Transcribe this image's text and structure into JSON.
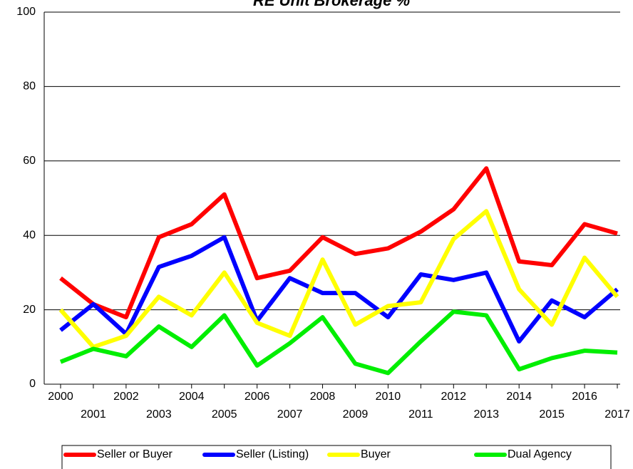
{
  "chart_data": {
    "type": "line",
    "title": "RE Unit Brokerage %",
    "categories": [
      "2000",
      "2001",
      "2002",
      "2003",
      "2004",
      "2005",
      "2006",
      "2007",
      "2008",
      "2009",
      "2010",
      "2011",
      "2012",
      "2013",
      "2014",
      "2015",
      "2016",
      "2017"
    ],
    "series": [
      {
        "name": "Seller or Buyer",
        "color": "#ff0000",
        "values": [
          28.5,
          21.5,
          18,
          39.5,
          43,
          51,
          28.5,
          30.5,
          39.5,
          35,
          36.5,
          41,
          47,
          58,
          33,
          32,
          43,
          40.5
        ]
      },
      {
        "name": "Seller (Listing)",
        "color": "#0000ff",
        "values": [
          14.5,
          21.5,
          13.5,
          31.5,
          34.5,
          39.5,
          17,
          28.5,
          24.5,
          24.5,
          18,
          29.5,
          28,
          30,
          11.5,
          22.5,
          18,
          25.5
        ]
      },
      {
        "name": "Buyer",
        "color": "#ffff00",
        "values": [
          20,
          10,
          13,
          23.5,
          18.5,
          30,
          16.5,
          13,
          33.5,
          16,
          21,
          22,
          39,
          46.5,
          25.5,
          16,
          34,
          23.5
        ]
      },
      {
        "name": "Dual Agency",
        "color": "#00ee00",
        "values": [
          6,
          9.5,
          7.5,
          15.5,
          10,
          18.5,
          5,
          11,
          18,
          5.5,
          3,
          11.5,
          19.5,
          18.5,
          4,
          7,
          9,
          8.5
        ]
      }
    ],
    "ylim": [
      0,
      100
    ],
    "yticks": [
      0,
      20,
      40,
      60,
      80,
      100
    ],
    "grid": true
  }
}
